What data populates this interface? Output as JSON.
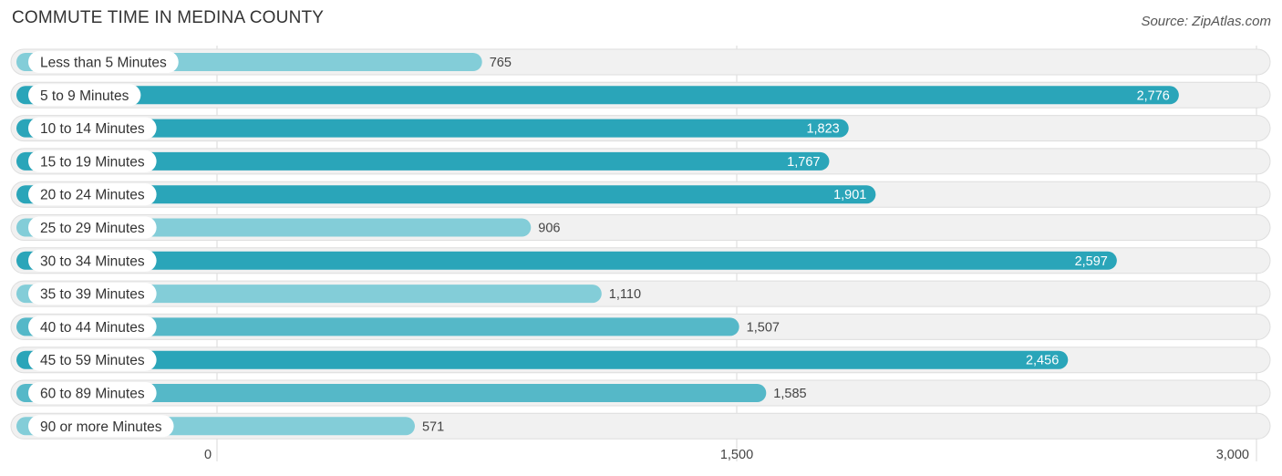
{
  "chart_data": {
    "type": "bar",
    "orientation": "horizontal",
    "title": "COMMUTE TIME IN MEDINA COUNTY",
    "source": "Source: ZipAtlas.com",
    "categories": [
      "Less than 5 Minutes",
      "5 to 9 Minutes",
      "10 to 14 Minutes",
      "15 to 19 Minutes",
      "20 to 24 Minutes",
      "25 to 29 Minutes",
      "30 to 34 Minutes",
      "35 to 39 Minutes",
      "40 to 44 Minutes",
      "45 to 59 Minutes",
      "60 to 89 Minutes",
      "90 or more Minutes"
    ],
    "values": [
      765,
      2776,
      1823,
      1767,
      1901,
      906,
      2597,
      1110,
      1507,
      2456,
      1585,
      571
    ],
    "value_labels": [
      "765",
      "2,776",
      "1,823",
      "1,767",
      "1,901",
      "906",
      "2,597",
      "1,110",
      "1,507",
      "2,456",
      "1,585",
      "571"
    ],
    "xlim": [
      0,
      3000
    ],
    "x_ticks": [
      0,
      1500,
      3000
    ],
    "x_tick_labels": [
      "0",
      "1,500",
      "3,000"
    ],
    "grid": true,
    "colors": {
      "bar_strong": "#2aa5b9",
      "bar_light": "#83cdd8",
      "track": "#f1f1f1",
      "track_border": "#dedede",
      "grid": "#d9d9d9"
    }
  }
}
